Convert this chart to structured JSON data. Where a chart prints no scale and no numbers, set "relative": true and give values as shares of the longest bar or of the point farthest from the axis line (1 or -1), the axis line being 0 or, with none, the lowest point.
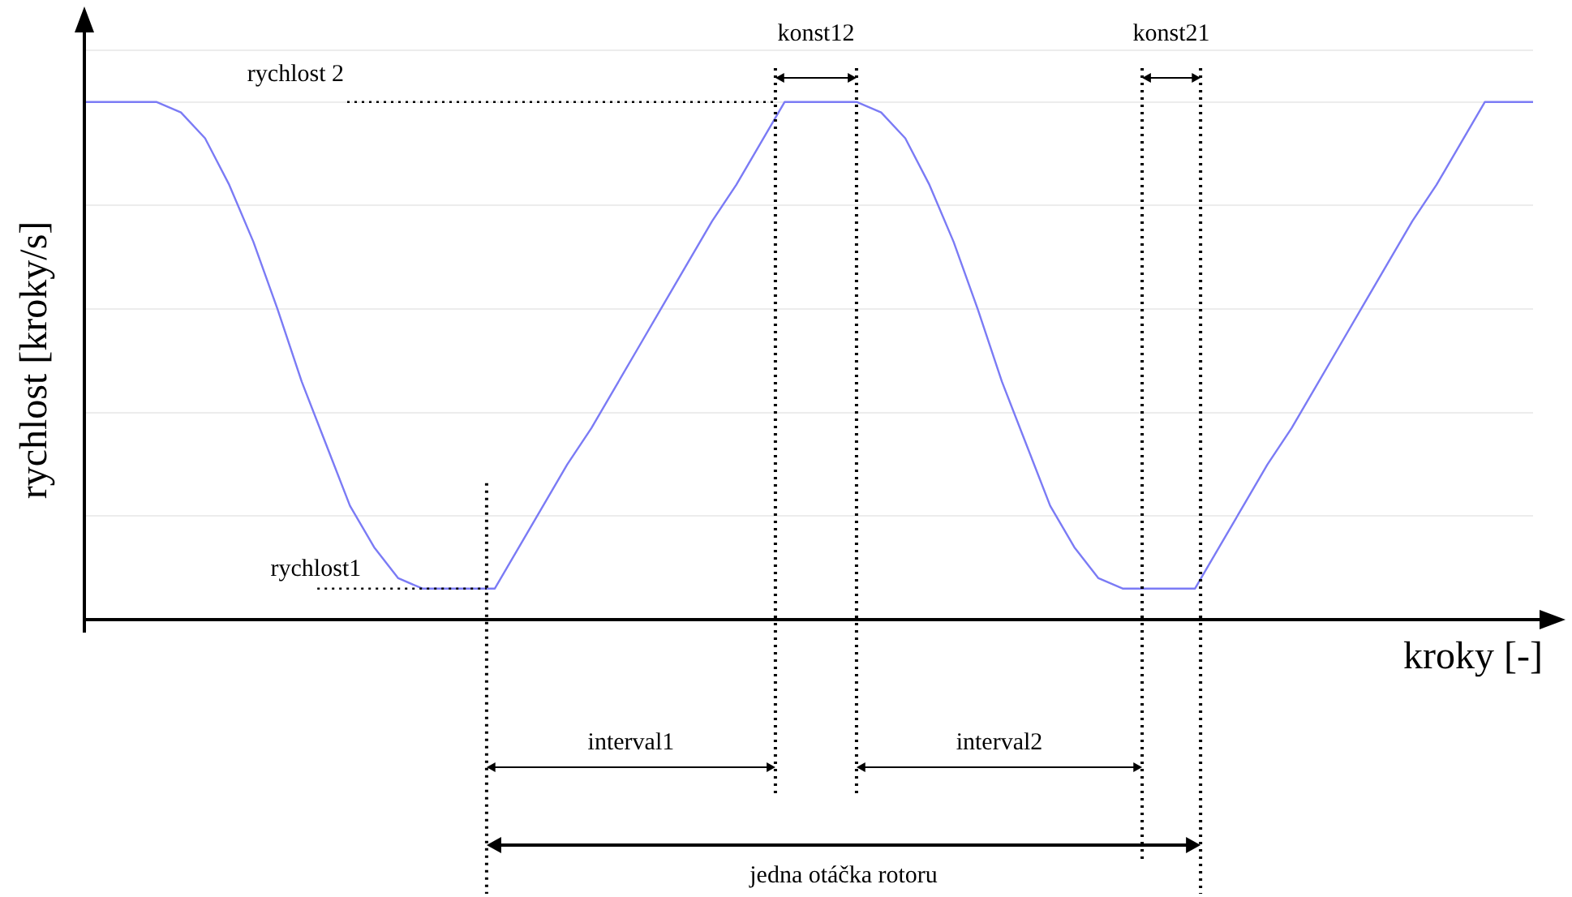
{
  "chart_data": {
    "type": "line",
    "relative": true,
    "xlabel": "kroky [-]",
    "ylabel": "rychlost [kroky/s]",
    "marker": "none",
    "grid": true,
    "categories": [
      null,
      null,
      null,
      null,
      null,
      null,
      null,
      null,
      null,
      null,
      null,
      null,
      null,
      null,
      null,
      null,
      null,
      null,
      null,
      null,
      null,
      null,
      null,
      null,
      null,
      null,
      null,
      null,
      null,
      null,
      null,
      null,
      null,
      null,
      null,
      null,
      null,
      null,
      null,
      null,
      null,
      null,
      null,
      null,
      null,
      null,
      null,
      null,
      null,
      null,
      null,
      null,
      null,
      null,
      null,
      null,
      null,
      null,
      null,
      null,
      null
    ],
    "series": [
      {
        "color": "#7b7bf5",
        "values": [
          1,
          1,
          1,
          1,
          0.98,
          0.93,
          0.84,
          0.73,
          0.6,
          0.46,
          0.34,
          0.22,
          0.14,
          0.08,
          0.06,
          0.06,
          0.06,
          0.06,
          0.14,
          0.22,
          0.3,
          0.37,
          0.45,
          0.53,
          0.61,
          0.69,
          0.77,
          0.84,
          0.92,
          1,
          1,
          1,
          1,
          0.98,
          0.93,
          0.84,
          0.73,
          0.6,
          0.46,
          0.34,
          0.22,
          0.14,
          0.08,
          0.06,
          0.06,
          0.06,
          0.06,
          0.14,
          0.22,
          0.3,
          0.37,
          0.45,
          0.53,
          0.61,
          0.69,
          0.77,
          0.84,
          0.92,
          1,
          1,
          1
        ]
      }
    ],
    "annotations": [
      "rychlost 2",
      "rychlost1",
      "konst12",
      "konst21",
      "interval1",
      "interval2",
      "jedna otáčka rotoru"
    ]
  }
}
